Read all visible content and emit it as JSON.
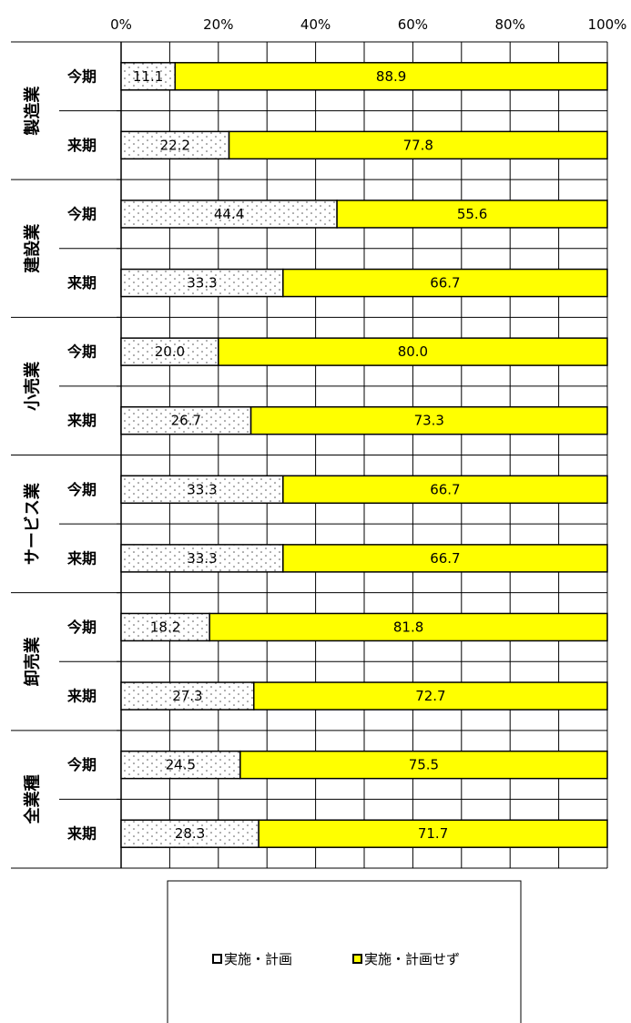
{
  "chart_data": {
    "type": "bar",
    "orientation": "horizontal",
    "stacked": "percent",
    "xlim": [
      0,
      100
    ],
    "x_ticks": [
      "0%",
      "20%",
      "40%",
      "60%",
      "80%",
      "100%"
    ],
    "grid": true,
    "colors": {
      "planned": "#ffffff",
      "not_planned": "#ffff00"
    },
    "groups": [
      {
        "industry": "製造業",
        "rows": [
          {
            "period": "今期",
            "values": [
              11.1,
              88.9
            ]
          },
          {
            "period": "来期",
            "values": [
              22.2,
              77.8
            ]
          }
        ]
      },
      {
        "industry": "建設業",
        "rows": [
          {
            "period": "今期",
            "values": [
              44.4,
              55.6
            ]
          },
          {
            "period": "来期",
            "values": [
              33.3,
              66.7
            ]
          }
        ]
      },
      {
        "industry": "小売業",
        "rows": [
          {
            "period": "今期",
            "values": [
              20.0,
              80.0
            ]
          },
          {
            "period": "来期",
            "values": [
              26.7,
              73.3
            ]
          }
        ]
      },
      {
        "industry": "サービス業",
        "rows": [
          {
            "period": "今期",
            "values": [
              33.3,
              66.7
            ]
          },
          {
            "period": "来期",
            "values": [
              33.3,
              66.7
            ]
          }
        ]
      },
      {
        "industry": "卸売業",
        "rows": [
          {
            "period": "今期",
            "values": [
              18.2,
              81.8
            ]
          },
          {
            "period": "来期",
            "values": [
              27.3,
              72.7
            ]
          }
        ]
      },
      {
        "industry": "全業種",
        "rows": [
          {
            "period": "今期",
            "values": [
              24.5,
              75.5
            ]
          },
          {
            "period": "来期",
            "values": [
              28.3,
              71.7
            ]
          }
        ]
      }
    ],
    "series": [
      {
        "name": "実施・計画",
        "pattern": "dotted"
      },
      {
        "name": "実施・計画せず",
        "pattern": "solid"
      }
    ],
    "legend_position": "bottom"
  }
}
